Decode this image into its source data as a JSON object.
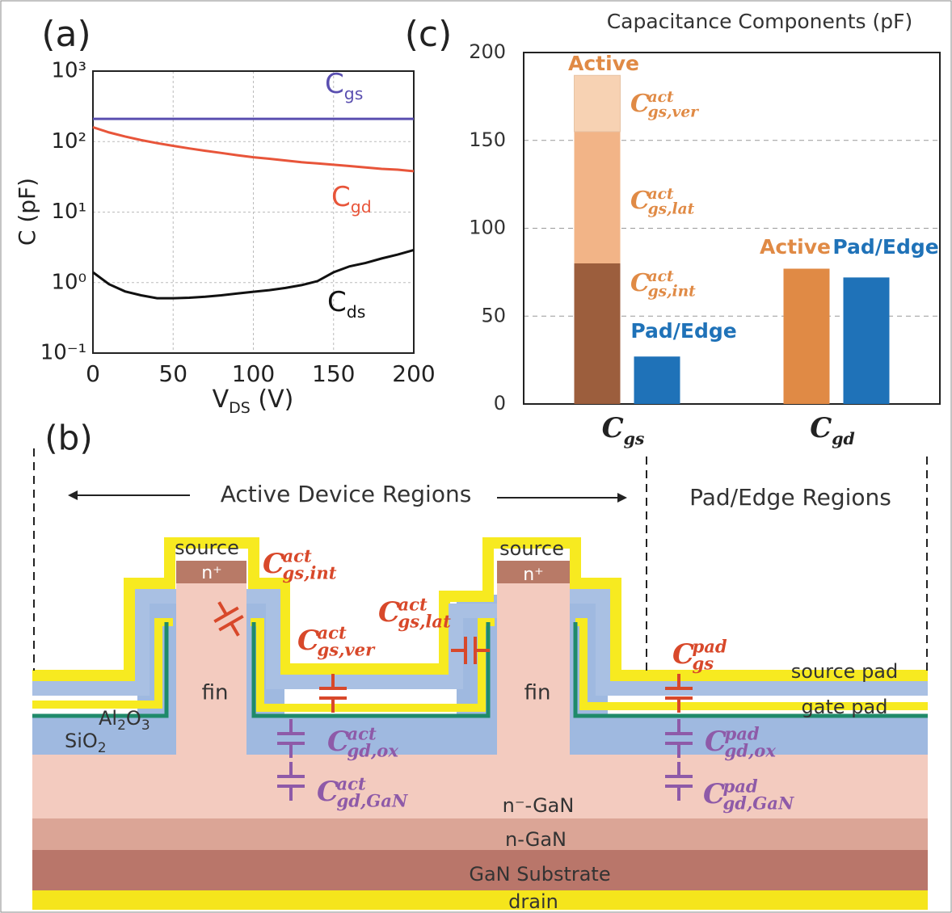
{
  "chart_data": [
    {
      "type": "line",
      "panel": "(a)",
      "ylabel": "C (pF)",
      "xlabel": [
        "V",
        "DS",
        " (V)"
      ],
      "x": [
        0,
        10,
        20,
        30,
        40,
        50,
        60,
        70,
        80,
        90,
        100,
        110,
        120,
        130,
        140,
        150,
        160,
        170,
        180,
        190,
        200
      ],
      "xlim": [
        0,
        200
      ],
      "xticks": [
        0,
        50,
        100,
        150,
        200
      ],
      "ylim": [
        0.1,
        1000
      ],
      "log_y": true,
      "grid": true,
      "yticks": [
        {
          "value": 0.1,
          "label": "10⁻¹"
        },
        {
          "value": 1,
          "label": "10⁰"
        },
        {
          "value": 10,
          "label": "10¹"
        },
        {
          "value": 100,
          "label": "10²"
        },
        {
          "value": 1000,
          "label": "10³"
        }
      ],
      "series": [
        {
          "name": "Cgs",
          "color": "#5a4fb0",
          "values": [
            210,
            210,
            210,
            210,
            210,
            210,
            210,
            210,
            210,
            210,
            210,
            210,
            210,
            210,
            210,
            210,
            210,
            210,
            210,
            210,
            210
          ]
        },
        {
          "name": "Cgd",
          "color": "#e8553a",
          "values": [
            160,
            135,
            118,
            105,
            95,
            87,
            80,
            74,
            69,
            64,
            60,
            57,
            54,
            51,
            49,
            47,
            45,
            43,
            41,
            40,
            38
          ]
        },
        {
          "name": "Cds",
          "color": "#111111",
          "values": [
            1.4,
            0.95,
            0.75,
            0.66,
            0.6,
            0.6,
            0.61,
            0.63,
            0.66,
            0.7,
            0.74,
            0.78,
            0.84,
            0.92,
            1.05,
            1.4,
            1.7,
            1.9,
            2.2,
            2.5,
            2.9
          ]
        }
      ]
    },
    {
      "type": "bar",
      "panel": "(c)",
      "title": "Capacitance Components (pF)",
      "stacked": true,
      "categories": [
        "Cgs",
        "Cgd"
      ],
      "ylim": [
        0,
        200
      ],
      "yticks": [
        0,
        50,
        100,
        150,
        200
      ],
      "grid": true,
      "series": [
        {
          "name": "C",
          "sup": "act",
          "sub": "gs,int",
          "color": "#9c5e3d",
          "values": [
            80,
            null
          ]
        },
        {
          "name": "C",
          "sup": "act",
          "sub": "gs,lat",
          "color": "#f2b487",
          "values": [
            75,
            null
          ]
        },
        {
          "name": "C",
          "sup": "act",
          "sub": "gs,ver",
          "color": "#f7d2b3",
          "values": [
            32,
            null
          ]
        },
        {
          "name": "Active",
          "color": "#e08a45",
          "values": [
            null,
            77
          ]
        },
        {
          "name": "Pad/Edge",
          "color": "#1f72b8",
          "values": [
            27,
            72
          ]
        }
      ]
    }
  ],
  "diagram": {
    "panel": "(b)",
    "regions": [
      "Active Device Regions",
      "Pad/Edge Regions"
    ],
    "source": "source",
    "cap": "n⁺",
    "fin": "fin",
    "al2o3": [
      "Al",
      "2",
      "O",
      "3"
    ],
    "sio2": [
      "SiO",
      "2"
    ],
    "pads": [
      "source pad",
      "gate pad"
    ],
    "layers": [
      "n⁻-GaN",
      "n-GaN",
      "GaN Substrate",
      "drain"
    ],
    "capacitors": [
      {
        "name": "C",
        "sup": "act",
        "sub": "gs,int",
        "color": "#d8482a"
      },
      {
        "name": "C",
        "sup": "act",
        "sub": "gs,ver",
        "color": "#d8482a"
      },
      {
        "name": "C",
        "sup": "act",
        "sub": "gs,lat",
        "color": "#d8482a"
      },
      {
        "name": "C",
        "sup": "pad",
        "sub": "gs",
        "color": "#d8482a"
      },
      {
        "name": "C",
        "sup": "act",
        "sub": "gd,ox",
        "color": "#8e5aa8"
      },
      {
        "name": "C",
        "sup": "act",
        "sub": "gd,GaN",
        "color": "#8e5aa8"
      },
      {
        "name": "C",
        "sup": "pad",
        "sub": "gd,ox",
        "color": "#8e5aa8"
      },
      {
        "name": "C",
        "sup": "pad",
        "sub": "gd,GaN",
        "color": "#8e5aa8"
      }
    ]
  }
}
